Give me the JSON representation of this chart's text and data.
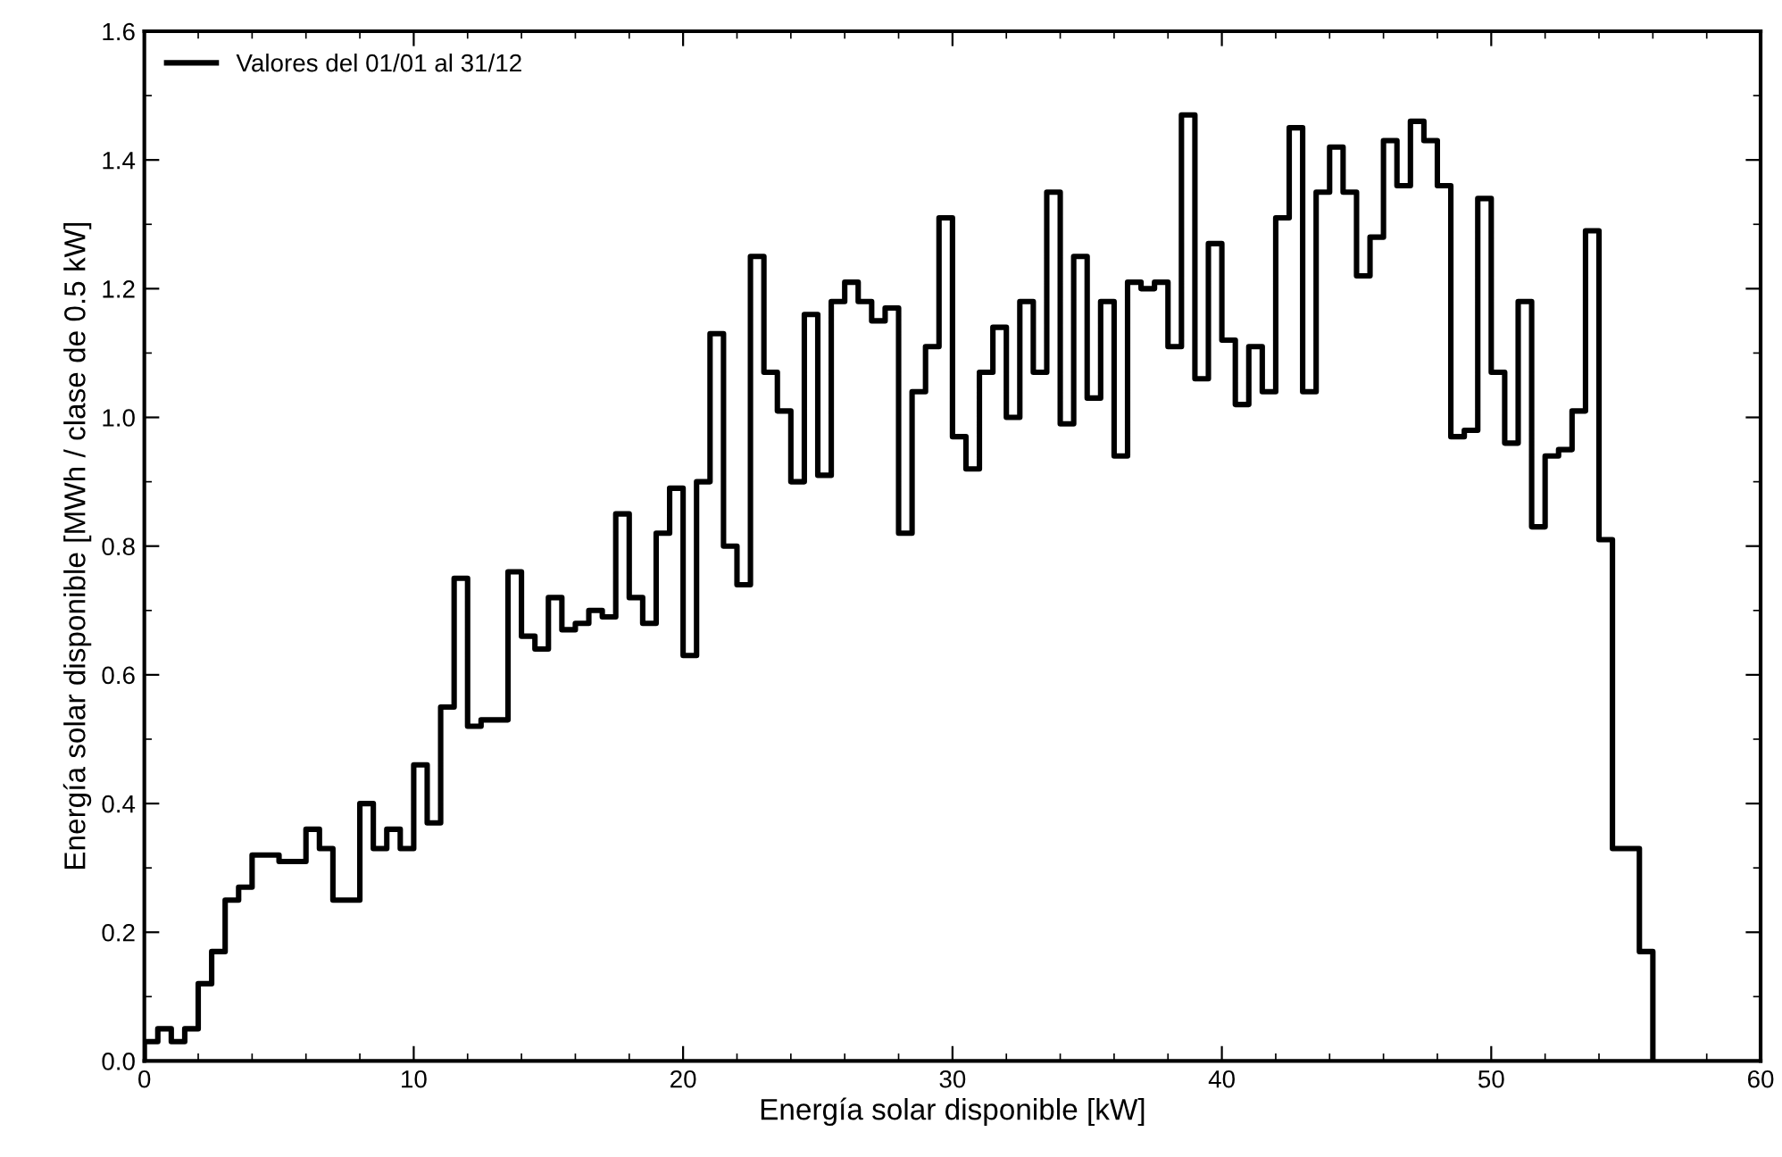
{
  "chart_data": {
    "type": "histogram",
    "xlabel": "Energía solar disponible [kW]",
    "ylabel": "Energía solar disponible [MWh / clase de 0.5 kW]",
    "bins": [
      0,
      0.5,
      1,
      1.5,
      2,
      2.5,
      3,
      3.5,
      4,
      4.5,
      5,
      5.5,
      6,
      6.5,
      7,
      7.5,
      8,
      8.5,
      9,
      9.5,
      10,
      10.5,
      11,
      11.5,
      12,
      12.5,
      13,
      13.5,
      14,
      14.5,
      15,
      15.5,
      16,
      16.5,
      17,
      17.5,
      18,
      18.5,
      19,
      19.5,
      20,
      20.5,
      21,
      21.5,
      22,
      22.5,
      23,
      23.5,
      24,
      24.5,
      25,
      25.5,
      26,
      26.5,
      27,
      27.5,
      28,
      28.5,
      29,
      29.5,
      30,
      30.5,
      31,
      31.5,
      32,
      32.5,
      33,
      33.5,
      34,
      34.5,
      35,
      35.5,
      36,
      36.5,
      37,
      37.5,
      38,
      38.5,
      39,
      39.5,
      40,
      40.5,
      41,
      41.5,
      42,
      42.5,
      43,
      43.5,
      44,
      44.5,
      45,
      45.5,
      46,
      46.5,
      47,
      47.5,
      48,
      48.5,
      49,
      49.5,
      50,
      50.5,
      51,
      51.5,
      52,
      52.5,
      53,
      53.5,
      54,
      54.5,
      55,
      55.5,
      56
    ],
    "series": [
      {
        "name": "Valores del 01/01 al 31/12",
        "color": "#000000",
        "values": [
          0.03,
          0.05,
          0.03,
          0.05,
          0.12,
          0.17,
          0.25,
          0.27,
          0.32,
          0.32,
          0.31,
          0.31,
          0.36,
          0.33,
          0.25,
          0.25,
          0.4,
          0.33,
          0.36,
          0.33,
          0.46,
          0.37,
          0.55,
          0.75,
          0.52,
          0.53,
          0.53,
          0.76,
          0.66,
          0.64,
          0.72,
          0.67,
          0.68,
          0.7,
          0.69,
          0.85,
          0.72,
          0.68,
          0.82,
          0.89,
          0.63,
          0.9,
          1.13,
          0.8,
          0.74,
          1.25,
          1.07,
          1.01,
          0.9,
          1.16,
          0.91,
          1.18,
          1.21,
          1.18,
          1.15,
          1.17,
          0.82,
          1.04,
          1.11,
          1.31,
          0.97,
          0.92,
          1.07,
          1.14,
          1.0,
          1.18,
          1.07,
          1.35,
          0.99,
          1.25,
          1.03,
          1.18,
          0.94,
          1.21,
          1.2,
          1.21,
          1.11,
          1.47,
          1.06,
          1.27,
          1.12,
          1.02,
          1.11,
          1.04,
          1.31,
          1.45,
          1.04,
          1.35,
          1.42,
          1.35,
          1.22,
          1.28,
          1.43,
          1.36,
          1.46,
          1.43,
          1.36,
          0.97,
          0.98,
          1.34,
          1.07,
          0.96,
          1.18,
          0.83,
          0.94,
          0.95,
          1.01,
          1.29,
          0.81,
          0.33,
          0.33,
          0.17
        ]
      }
    ],
    "xlim": [
      0,
      60
    ],
    "xticks": [
      0,
      10,
      20,
      30,
      40,
      50,
      60
    ],
    "ylim": [
      0,
      1.6
    ],
    "yticks": [
      {
        "value": 0,
        "label": "0.0"
      },
      {
        "value": 0.2,
        "label": "0.2"
      },
      {
        "value": 0.4,
        "label": "0.4"
      },
      {
        "value": 0.6,
        "label": "0.6"
      },
      {
        "value": 0.8,
        "label": "0.8"
      },
      {
        "value": 1.0,
        "label": "1.0"
      },
      {
        "value": 1.2,
        "label": "1.2"
      },
      {
        "value": 1.4,
        "label": "1.4"
      },
      {
        "value": 1.6,
        "label": "1.6"
      }
    ],
    "legend": "top left",
    "grid": false
  }
}
